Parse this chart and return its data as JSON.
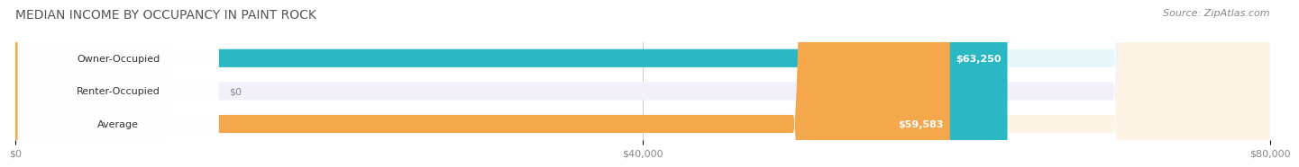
{
  "title": "MEDIAN INCOME BY OCCUPANCY IN PAINT ROCK",
  "source": "Source: ZipAtlas.com",
  "categories": [
    "Owner-Occupied",
    "Renter-Occupied",
    "Average"
  ],
  "values": [
    63250,
    0,
    59583
  ],
  "labels": [
    "$63,250",
    "$0",
    "$59,583"
  ],
  "bar_colors": [
    "#2ab8c5",
    "#b39ddb",
    "#f5a74b"
  ],
  "bar_bg_colors": [
    "#e8f8fa",
    "#f3f0fa",
    "#fef4e6"
  ],
  "xmax": 80000,
  "xticks": [
    0,
    40000,
    80000
  ],
  "xtick_labels": [
    "$0",
    "$40,000",
    "$80,000"
  ],
  "title_fontsize": 10,
  "source_fontsize": 8,
  "label_fontsize": 8,
  "bar_label_fontsize": 8
}
